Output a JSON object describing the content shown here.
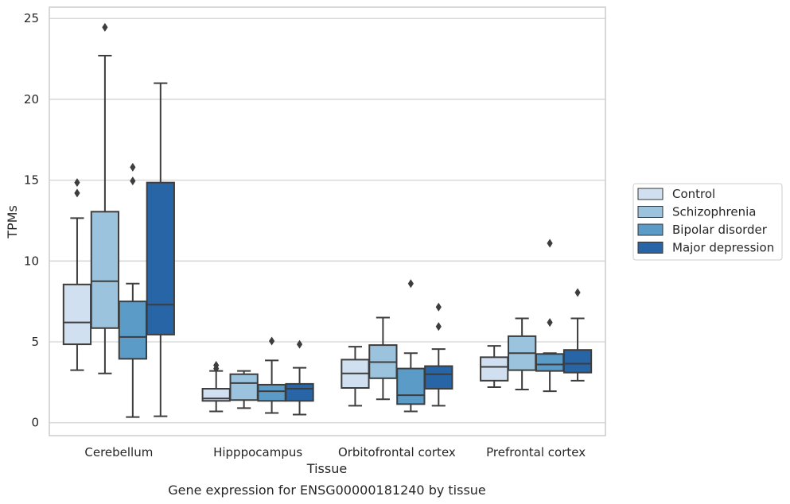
{
  "chart_data": {
    "type": "box",
    "title": "",
    "caption": "Gene expression for ENSG00000181240 by tissue",
    "xlabel": "Tissue",
    "ylabel": "TPMs",
    "ylim": [
      -0.8,
      25.7
    ],
    "yticks": [
      0,
      5,
      10,
      15,
      20,
      25
    ],
    "grid": "horizontal",
    "legend_position": "right",
    "categories": [
      "Cerebellum",
      "Hipppocampus",
      "Orbitofrontal cortex",
      "Prefrontal cortex"
    ],
    "series": [
      {
        "name": "Control",
        "color": "#d0e0f1",
        "boxes": [
          {
            "whislo": 3.25,
            "q1": 4.85,
            "med": 6.2,
            "q3": 8.55,
            "whishi": 12.65,
            "fliers": [
              14.2,
              14.85
            ]
          },
          {
            "whislo": 0.7,
            "q1": 1.35,
            "med": 1.5,
            "q3": 2.1,
            "whishi": 3.2,
            "fliers": [
              3.35,
              3.55
            ]
          },
          {
            "whislo": 1.05,
            "q1": 2.15,
            "med": 3.05,
            "q3": 3.9,
            "whishi": 4.7,
            "fliers": []
          },
          {
            "whislo": 2.2,
            "q1": 2.6,
            "med": 3.45,
            "q3": 4.05,
            "whishi": 4.75,
            "fliers": []
          }
        ]
      },
      {
        "name": "Schizophrenia",
        "color": "#9bc3dd",
        "boxes": [
          {
            "whislo": 3.05,
            "q1": 5.85,
            "med": 8.75,
            "q3": 13.05,
            "whishi": 22.7,
            "fliers": [
              24.45
            ]
          },
          {
            "whislo": 0.9,
            "q1": 1.4,
            "med": 2.45,
            "q3": 3.0,
            "whishi": 3.2,
            "fliers": []
          },
          {
            "whislo": 1.45,
            "q1": 2.75,
            "med": 3.75,
            "q3": 4.8,
            "whishi": 6.5,
            "fliers": []
          },
          {
            "whislo": 2.05,
            "q1": 3.25,
            "med": 4.3,
            "q3": 5.35,
            "whishi": 6.45,
            "fliers": []
          }
        ]
      },
      {
        "name": "Bipolar disorder",
        "color": "#5b9bc8",
        "boxes": [
          {
            "whislo": 0.35,
            "q1": 3.95,
            "med": 5.3,
            "q3": 7.5,
            "whishi": 8.6,
            "fliers": [
              14.95,
              15.8
            ]
          },
          {
            "whislo": 0.6,
            "q1": 1.35,
            "med": 1.95,
            "q3": 2.35,
            "whishi": 3.85,
            "fliers": [
              5.05
            ]
          },
          {
            "whislo": 0.7,
            "q1": 1.15,
            "med": 1.7,
            "q3": 3.35,
            "whishi": 4.3,
            "fliers": [
              8.6
            ]
          },
          {
            "whislo": 1.95,
            "q1": 3.2,
            "med": 3.6,
            "q3": 4.25,
            "whishi": 4.3,
            "fliers": [
              6.2,
              11.1
            ]
          }
        ]
      },
      {
        "name": "Major depression",
        "color": "#2865a6",
        "boxes": [
          {
            "whislo": 0.4,
            "q1": 5.45,
            "med": 7.3,
            "q3": 14.85,
            "whishi": 21.0,
            "fliers": []
          },
          {
            "whislo": 0.5,
            "q1": 1.35,
            "med": 2.1,
            "q3": 2.4,
            "whishi": 3.4,
            "fliers": [
              4.85
            ]
          },
          {
            "whislo": 1.05,
            "q1": 2.1,
            "med": 3.0,
            "q3": 3.5,
            "whishi": 4.55,
            "fliers": [
              5.95,
              7.15
            ]
          },
          {
            "whislo": 2.6,
            "q1": 3.1,
            "med": 3.65,
            "q3": 4.5,
            "whishi": 6.45,
            "fliers": [
              8.05
            ]
          }
        ]
      }
    ]
  }
}
